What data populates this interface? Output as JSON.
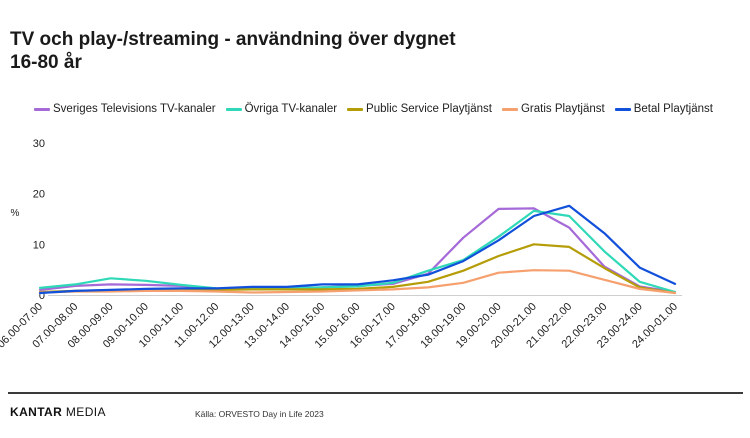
{
  "header": {
    "title_line1": "TV och play-/streaming - användning över dygnet",
    "title_line2": "16-80 år"
  },
  "footer": {
    "brand_bold": "KANTAR",
    "brand_light": "MEDIA",
    "source": "Källa: ORVESTO Day in Life 2023"
  },
  "chart_data": {
    "type": "line",
    "title": "TV och play-/streaming - användning över dygnet 16-80 år",
    "ylabel": "%",
    "xlabel": "",
    "ylim": [
      0,
      30
    ],
    "yticks": [
      0,
      10,
      20,
      30
    ],
    "grid": false,
    "legend_position": "top",
    "categories": [
      "06.00-07.00",
      "07.00-08.00",
      "08.00-09.00",
      "09.00-10.00",
      "10.00-11.00",
      "11.00-12.00",
      "12.00-13.00",
      "13.00-14.00",
      "14.00-15.00",
      "15.00-16.00",
      "16.00-17.00",
      "17.00-18.00",
      "18.00-19.00",
      "19.00-20.00",
      "20.00-21.00",
      "21.00-22.00",
      "22.00-23.00",
      "23.00-24.00",
      "24.00-01.00"
    ],
    "series": [
      {
        "name": "Sveriges Televisions TV-kanaler",
        "color": "#a56ad8",
        "values": [
          1.0,
          1.8,
          2.1,
          2.0,
          1.8,
          1.2,
          1.3,
          1.4,
          1.5,
          1.8,
          2.2,
          4.2,
          11.3,
          17.0,
          17.1,
          13.3,
          5.6,
          1.7,
          0.6
        ]
      },
      {
        "name": "Övriga TV-kanaler",
        "color": "#2fd9b7",
        "values": [
          1.4,
          2.1,
          3.3,
          2.8,
          2.0,
          1.3,
          1.2,
          1.3,
          1.5,
          1.7,
          2.4,
          4.8,
          6.9,
          11.5,
          16.6,
          15.6,
          8.6,
          2.6,
          0.6
        ]
      },
      {
        "name": "Public Service Playtjänst",
        "color": "#b59d08",
        "values": [
          0.6,
          0.8,
          0.9,
          1.0,
          1.1,
          1.0,
          1.1,
          1.1,
          1.1,
          1.2,
          1.6,
          2.6,
          4.8,
          7.7,
          10.0,
          9.5,
          5.3,
          1.5,
          0.4
        ]
      },
      {
        "name": "Gratis Playtjänst",
        "color": "#f5a06e",
        "values": [
          0.5,
          0.7,
          0.7,
          0.8,
          0.8,
          0.7,
          0.5,
          0.6,
          0.7,
          0.9,
          1.1,
          1.5,
          2.4,
          4.4,
          4.9,
          4.8,
          3.0,
          1.2,
          0.4
        ]
      },
      {
        "name": "Betal Playtjänst",
        "color": "#1150db",
        "values": [
          0.4,
          0.8,
          1.0,
          1.2,
          1.3,
          1.3,
          1.6,
          1.6,
          2.1,
          2.1,
          2.9,
          4.0,
          6.7,
          10.8,
          15.6,
          17.6,
          12.2,
          5.4,
          2.2
        ]
      }
    ]
  }
}
